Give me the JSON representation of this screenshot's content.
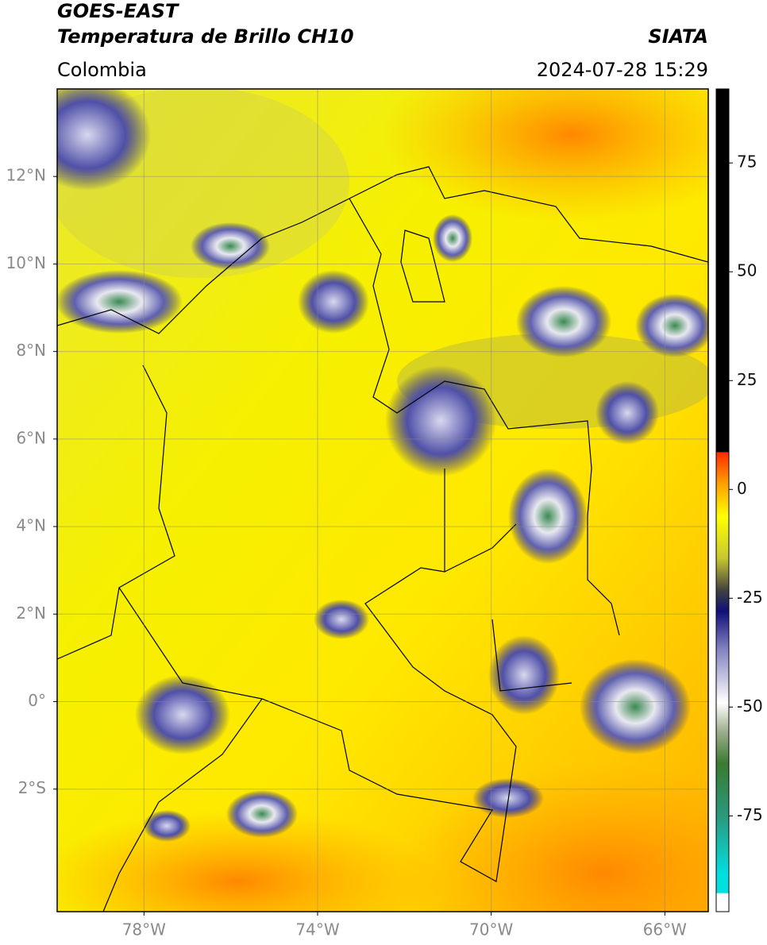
{
  "header": {
    "title": "GOES-EAST",
    "subtitle": "Temperatura de Brillo CH10",
    "source": "SIATA",
    "region": "Colombia",
    "timestamp": "2024-07-28 15:29"
  },
  "map": {
    "lon_lim": [
      -80,
      -65
    ],
    "lat_lim": [
      -4.8,
      14
    ],
    "grid": true,
    "lat_ticks": [
      {
        "value": 12,
        "label": "12°N"
      },
      {
        "value": 10,
        "label": "10°N"
      },
      {
        "value": 8,
        "label": "8°N"
      },
      {
        "value": 6,
        "label": "6°N"
      },
      {
        "value": 4,
        "label": "4°N"
      },
      {
        "value": 2,
        "label": "2°N"
      },
      {
        "value": 0,
        "label": "0°"
      },
      {
        "value": -2,
        "label": "2°S"
      }
    ],
    "lon_ticks": [
      {
        "value": -78,
        "label": "78°W"
      },
      {
        "value": -74,
        "label": "74°W"
      },
      {
        "value": -70,
        "label": "70°W"
      },
      {
        "value": -66,
        "label": "66°W"
      }
    ]
  },
  "colorbar": {
    "lim": [
      -97,
      92
    ],
    "ticks": [
      75,
      50,
      25,
      0,
      -25,
      -50,
      -75
    ]
  }
}
